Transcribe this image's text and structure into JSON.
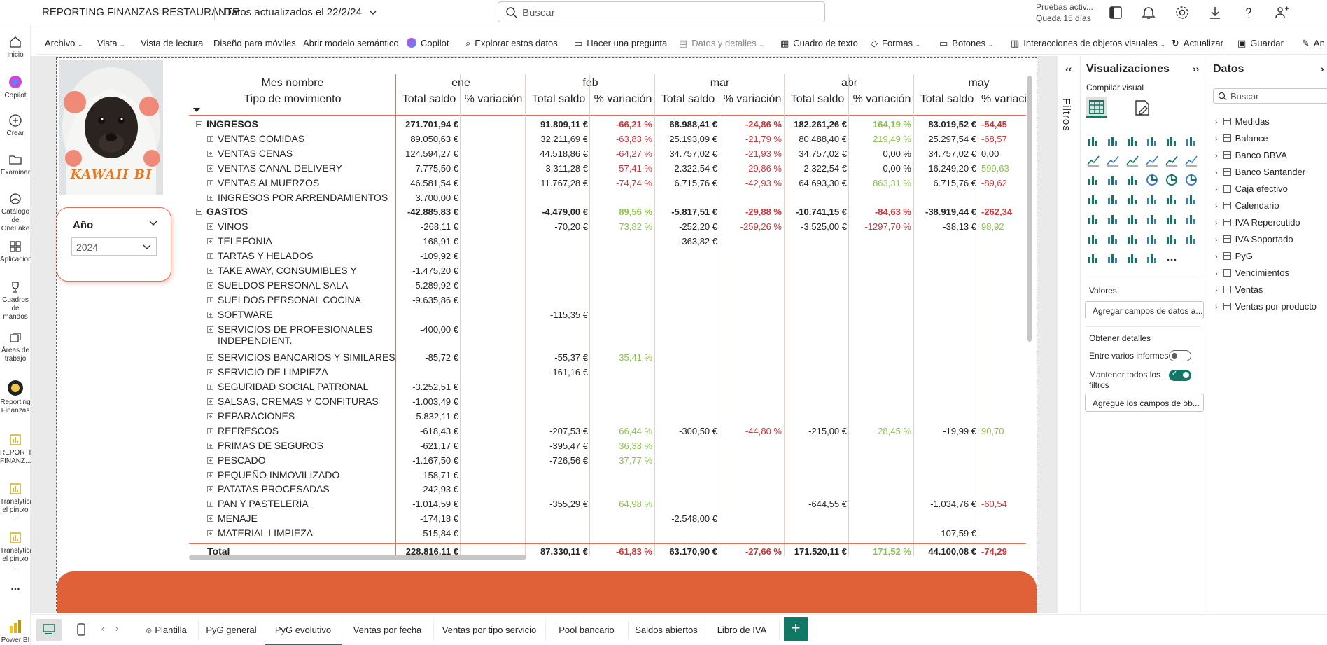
{
  "header": {
    "report_title": "REPORTING FINANZAS RESTAURANTE",
    "updated": "Datos actualizados el 22/2/24",
    "search_placeholder": "Buscar",
    "trial_line1": "Pruebas activ...",
    "trial_line2": "Queda 15 días"
  },
  "leftnav": [
    {
      "label": "Inicio"
    },
    {
      "label": "Copilot"
    },
    {
      "label": "Crear"
    },
    {
      "label": "Examinar"
    },
    {
      "label": "Catálogo de OneLake"
    },
    {
      "label": "Aplicaciones"
    },
    {
      "label": "Cuadros de mandos"
    },
    {
      "label": "Áreas de trabajo"
    },
    {
      "label": "Reporting Finanzas"
    },
    {
      "label": "REPORTING FINANZ..."
    },
    {
      "label": "Translytical el pintxo ..."
    },
    {
      "label": "Translytical el pintxo ..."
    },
    {
      "label": "..."
    },
    {
      "label": "Power BI"
    }
  ],
  "ribbon": [
    {
      "label": "Archivo"
    },
    {
      "label": "Vista"
    },
    {
      "label": "Vista de lectura"
    },
    {
      "label": "Diseño para móviles"
    },
    {
      "label": "Abrir modelo semántico"
    },
    {
      "label": "Copilot"
    },
    {
      "label": "Explorar estos datos"
    },
    {
      "label": "Hacer una pregunta"
    },
    {
      "label": "Datos y detalles"
    },
    {
      "label": "Cuadro de texto"
    },
    {
      "label": "Formas"
    },
    {
      "label": "Botones"
    },
    {
      "label": "Interacciones de objetos visuales"
    },
    {
      "label": "Actualizar"
    },
    {
      "label": "Guardar"
    },
    {
      "label": "An"
    }
  ],
  "logo_text": "KAWAII BI",
  "slicer": {
    "label": "Año",
    "value": "2024"
  },
  "matrix": {
    "row_header_1": "Mes nombre",
    "row_header_2": "Tipo de movimiento",
    "months": [
      "ene",
      "feb",
      "mar",
      "abr",
      "may"
    ],
    "sub_1": "Total saldo",
    "sub_2": "% variación",
    "sub_2_trunc": "% variaci",
    "rows": [
      {
        "label": "INGRESOS",
        "type": "group",
        "v": [
          "271.701,94 €",
          "",
          "91.809,11 €",
          "-66,21 %",
          "68.988,41 €",
          "-24,86 %",
          "182.261,26 €",
          "164,19 %",
          "83.019,52 €",
          "-54,45"
        ]
      },
      {
        "label": "VENTAS COMIDAS",
        "type": "item",
        "v": [
          "89.050,63 €",
          "",
          "32.211,69 €",
          "-63,83 %",
          "25.193,09 €",
          "-21,79 %",
          "80.488,40 €",
          "219,49 %",
          "25.297,54 €",
          "-68,57"
        ]
      },
      {
        "label": "VENTAS CENAS",
        "type": "item",
        "v": [
          "124.594,27 €",
          "",
          "44.518,86 €",
          "-64,27 %",
          "34.757,02 €",
          "-21,93 %",
          "34.757,02 €",
          "0,00 %",
          "34.757,02 €",
          "0,00"
        ]
      },
      {
        "label": "VENTAS CANAL DELIVERY",
        "type": "item",
        "v": [
          "7.775,50 €",
          "",
          "3.311,28 €",
          "-57,41 %",
          "2.322,54 €",
          "-29,86 %",
          "2.322,54 €",
          "0,00 %",
          "16.249,20 €",
          "599,63"
        ]
      },
      {
        "label": "VENTAS ALMUERZOS",
        "type": "item",
        "v": [
          "46.581,54 €",
          "",
          "11.767,28 €",
          "-74,74 %",
          "6.715,76 €",
          "-42,93 %",
          "64.693,30 €",
          "863,31 %",
          "6.715,76 €",
          "-89,62"
        ]
      },
      {
        "label": "INGRESOS POR ARRENDAMIENTOS",
        "type": "item",
        "v": [
          "3.700,00 €",
          "",
          "",
          "",
          "",
          "",
          "",
          "",
          "",
          ""
        ]
      },
      {
        "label": "GASTOS",
        "type": "group",
        "v": [
          "-42.885,83 €",
          "",
          "-4.479,00 €",
          "89,56 %",
          "-5.817,51 €",
          "-29,88 %",
          "-10.741,15 €",
          "-84,63 %",
          "-38.919,44 €",
          "-262,34"
        ]
      },
      {
        "label": "VINOS",
        "type": "item",
        "v": [
          "-268,11 €",
          "",
          "-70,20 €",
          "73,82 %",
          "-252,20 €",
          "-259,26 %",
          "-3.525,00 €",
          "-1297,70 %",
          "-38,13 €",
          "98,92"
        ]
      },
      {
        "label": "TELEFONIA",
        "type": "item",
        "v": [
          "-168,91 €",
          "",
          "",
          "",
          "-363,82 €",
          "",
          "",
          "",
          "",
          ""
        ]
      },
      {
        "label": "TARTAS Y HELADOS",
        "type": "item",
        "v": [
          "-109,92 €",
          "",
          "",
          "",
          "",
          "",
          "",
          "",
          "",
          ""
        ]
      },
      {
        "label": "TAKE AWAY, CONSUMIBLES Y",
        "type": "item",
        "v": [
          "-1.475,20 €",
          "",
          "",
          "",
          "",
          "",
          "",
          "",
          "",
          ""
        ]
      },
      {
        "label": "SUELDOS PERSONAL SALA",
        "type": "item",
        "v": [
          "-5.289,92 €",
          "",
          "",
          "",
          "",
          "",
          "",
          "",
          "",
          ""
        ]
      },
      {
        "label": "SUELDOS PERSONAL COCINA",
        "type": "item",
        "v": [
          "-9.635,86 €",
          "",
          "",
          "",
          "",
          "",
          "",
          "",
          "",
          ""
        ]
      },
      {
        "label": "SOFTWARE",
        "type": "item",
        "v": [
          "",
          "",
          "-115,35 €",
          "",
          "",
          "",
          "",
          "",
          "",
          ""
        ]
      },
      {
        "label": "SERVICIOS DE PROFESIONALES",
        "label2": "INDEPENDIENT.",
        "type": "item2",
        "v": [
          "-400,00 €",
          "",
          "",
          "",
          "",
          "",
          "",
          "",
          "",
          ""
        ]
      },
      {
        "label": "SERVICIOS BANCARIOS Y SIMILARES",
        "type": "item",
        "v": [
          "-85,72 €",
          "",
          "-55,37 €",
          "35,41 %",
          "",
          "",
          "",
          "",
          "",
          ""
        ]
      },
      {
        "label": "SERVICIO DE LIMPIEZA",
        "type": "item",
        "v": [
          "",
          "",
          "-161,16 €",
          "",
          "",
          "",
          "",
          "",
          "",
          ""
        ]
      },
      {
        "label": "SEGURIDAD SOCIAL PATRONAL",
        "type": "item",
        "v": [
          "-3.252,51 €",
          "",
          "",
          "",
          "",
          "",
          "",
          "",
          "",
          ""
        ]
      },
      {
        "label": "SALSAS, CREMAS Y CONFITURAS",
        "type": "item",
        "v": [
          "-1.003,49 €",
          "",
          "",
          "",
          "",
          "",
          "",
          "",
          "",
          ""
        ]
      },
      {
        "label": "REPARACIONES",
        "type": "item",
        "v": [
          "-5.832,11 €",
          "",
          "",
          "",
          "",
          "",
          "",
          "",
          "",
          ""
        ]
      },
      {
        "label": "REFRESCOS",
        "type": "item",
        "v": [
          "-618,43 €",
          "",
          "-207,53 €",
          "66,44 %",
          "-300,50 €",
          "-44,80 %",
          "-215,00 €",
          "28,45 %",
          "-19,99 €",
          "90,70"
        ]
      },
      {
        "label": "PRIMAS DE SEGUROS",
        "type": "item",
        "v": [
          "-621,17 €",
          "",
          "-395,47 €",
          "36,33 %",
          "",
          "",
          "",
          "",
          "",
          ""
        ]
      },
      {
        "label": "PESCADO",
        "type": "item",
        "v": [
          "-1.167,50 €",
          "",
          "-726,56 €",
          "37,77 %",
          "",
          "",
          "",
          "",
          "",
          ""
        ]
      },
      {
        "label": "PEQUEÑO INMOVILIZADO",
        "type": "item",
        "v": [
          "-158,71 €",
          "",
          "",
          "",
          "",
          "",
          "",
          "",
          "",
          ""
        ]
      },
      {
        "label": "PATATAS PROCESADAS",
        "type": "item",
        "v": [
          "-242,93 €",
          "",
          "",
          "",
          "",
          "",
          "",
          "",
          "",
          ""
        ]
      },
      {
        "label": "PAN Y PASTELERÍA",
        "type": "item",
        "v": [
          "-1.014,59 €",
          "",
          "-355,29 €",
          "64,98 %",
          "",
          "",
          "-644,55 €",
          "",
          "-1.034,76 €",
          "-60,54"
        ]
      },
      {
        "label": "MENAJE",
        "type": "item",
        "v": [
          "-174,18 €",
          "",
          "",
          "",
          "-2.548,00 €",
          "",
          "",
          "",
          "",
          ""
        ]
      },
      {
        "label": "MATERIAL LIMPIEZA",
        "type": "item",
        "v": [
          "-515,84 €",
          "",
          "",
          "",
          "",
          "",
          "",
          "",
          "-107,59 €",
          ""
        ]
      },
      {
        "label": "Total",
        "type": "total",
        "v": [
          "228.816,11 €",
          "",
          "87.330,11 €",
          "-61,83 %",
          "63.170,90 €",
          "-27,66 %",
          "171.520,11 €",
          "171,52 %",
          "44.100,08 €",
          "-74,29"
        ]
      }
    ]
  },
  "filters_label": "Filtros",
  "viz_pane": {
    "title": "Visualizaciones",
    "build": "Compilar visual",
    "values": "Valores",
    "add_fields": "Agregar campos de datos a...",
    "details": "Obtener detalles",
    "cross_report": "Entre varios informes",
    "keep_filters": "Mantener todos los filtros",
    "keep_filters_1": "Mantener todos los",
    "keep_filters_2": "filtros",
    "add_drill": "Agregue los campos de ob...",
    "toggle_cross": "off",
    "toggle_keep": "on"
  },
  "data_pane": {
    "title": "Datos",
    "search_placeholder": "Buscar",
    "fields": [
      "Medidas",
      "Balance",
      "Banco BBVA",
      "Banco Santander",
      "Caja efectivo",
      "Calendario",
      "IVA Repercutido",
      "IVA Soportado",
      "PyG",
      "Vencimientos",
      "Ventas",
      "Ventas por producto"
    ]
  },
  "tabs": [
    {
      "label": "Plantilla"
    },
    {
      "label": "PyG general"
    },
    {
      "label": "PyG evolutivo"
    },
    {
      "label": "Ventas por fecha"
    },
    {
      "label": "Ventas por tipo servicio"
    },
    {
      "label": "Pool bancario"
    },
    {
      "label": "Saldos abiertos"
    },
    {
      "label": "Libro de IVA"
    }
  ],
  "colors": {
    "accent": "#e06038",
    "positive": "#8bc34a",
    "negative": "#d13438",
    "toggle_on": "#117865"
  }
}
